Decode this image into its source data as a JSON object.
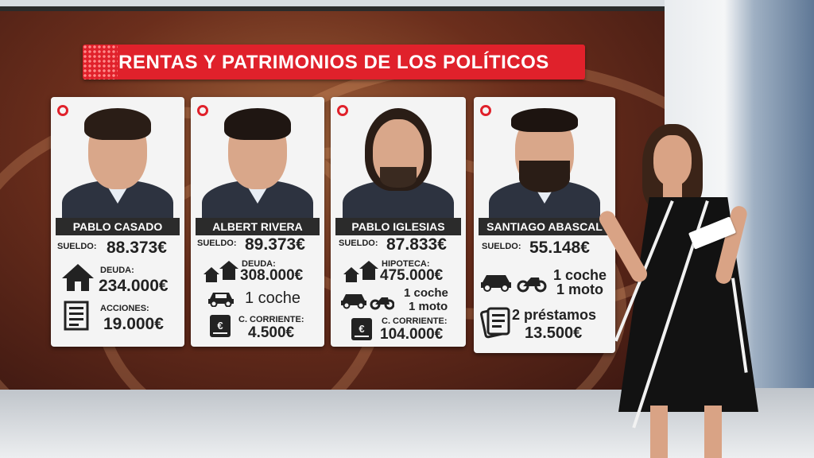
{
  "title": "RENTAS Y PATRIMONIOS DE LOS POLÍTICOS",
  "cards": [
    {
      "name": "PABLO CASADO",
      "salary_label": "SUELDO:",
      "salary": "88.373€",
      "item1_label": "DEUDA:",
      "item1_value": "234.000€",
      "item1_icon": "house-icon",
      "item2_label": "ACCIONES:",
      "item2_value": "19.000€",
      "item2_icon": "newspaper-icon"
    },
    {
      "name": "ALBERT RIVERA",
      "salary_label": "SUELDO:",
      "salary": "89.373€",
      "item1_label": "DEUDA:",
      "item1_value": "308.000€",
      "item1_icon": "two-houses-icon",
      "item2_value": "1 coche",
      "item2_icon": "car-icon",
      "item3_label": "C. CORRIENTE:",
      "item3_value": "4.500€",
      "item3_icon": "bank-card-icon"
    },
    {
      "name": "PABLO IGLESIAS",
      "salary_label": "SUELDO:",
      "salary": "87.833€",
      "item1_label": "HIPOTECA:",
      "item1_value": "475.000€",
      "item1_icon": "two-houses-icon",
      "item2_value_a": "1 coche",
      "item2_value_b": "1 moto",
      "item2_icon": "car-and-motorbike-icon",
      "item3_label": "C. CORRIENTE:",
      "item3_value": "104.000€",
      "item3_icon": "bank-card-icon"
    },
    {
      "name": "SANTIAGO ABASCAL",
      "salary_label": "SUELDO:",
      "salary": "55.148€",
      "item1_value_a": "1 coche",
      "item1_value_b": "1 moto",
      "item1_icon": "car-and-motorbike-icon",
      "item2_value_a": "2 préstamos",
      "item2_value_b": "13.500€",
      "item2_icon": "documents-icon"
    }
  ],
  "colors": {
    "title_red": "#e0212b",
    "name_bar": "#2b2b2b",
    "card_bg": "#f4f4f4",
    "text": "#222222"
  }
}
